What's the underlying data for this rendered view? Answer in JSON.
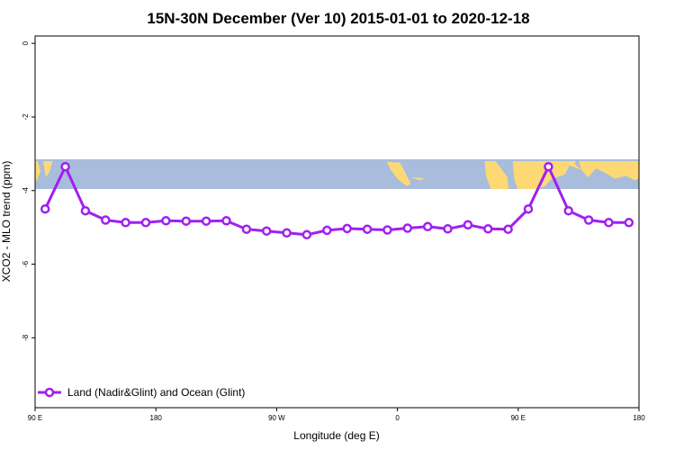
{
  "chart_data": {
    "type": "line",
    "title": "15N-30N December (Ver 10)   2015-01-01 to 2020-12-18",
    "xlabel": "Longitude (deg E)",
    "ylabel": "XCO2 - MLO trend (ppm)",
    "x_tick_labels": [
      "90 E",
      "180",
      "90 W",
      "0",
      "90 E",
      "180"
    ],
    "x_tick_values": [
      90,
      180,
      270,
      360,
      450,
      540
    ],
    "xlim": [
      90,
      540
    ],
    "y_tick_labels": [
      "0",
      "-2",
      "-4",
      "-6",
      "-8"
    ],
    "y_tick_values": [
      0,
      -2,
      -4,
      -6,
      -8
    ],
    "ylim": [
      -9.9,
      0.2
    ],
    "grid": false,
    "legend_position": "bottom-left",
    "map_band_y_range": [
      -4.0,
      -3.2
    ],
    "colors": {
      "series": "#a020f0",
      "ocean": "#a8bcdc",
      "land": "#fdd875"
    },
    "series": [
      {
        "name": "Land (Nadir&Glint) and Ocean (Glint)",
        "x": [
          97.5,
          112.5,
          127.5,
          142.5,
          157.5,
          172.5,
          187.5,
          202.5,
          217.5,
          232.5,
          247.5,
          262.5,
          277.5,
          292.5,
          307.5,
          322.5,
          337.5,
          352.5,
          367.5,
          382.5,
          397.5,
          412.5,
          427.5,
          442.5,
          457.5,
          472.5,
          487.5,
          502.5,
          517.5,
          532.5
        ],
        "values": [
          -4.5,
          -3.35,
          -4.55,
          -4.8,
          -4.87,
          -4.87,
          -4.82,
          -4.83,
          -4.83,
          -4.82,
          -5.05,
          -5.1,
          -5.15,
          -5.2,
          -5.08,
          -5.03,
          -5.05,
          -5.07,
          -5.02,
          -4.98,
          -5.04,
          -4.93,
          -5.04,
          -5.05,
          -4.5,
          -3.35,
          -4.55,
          -4.8,
          -4.87,
          -4.87
        ]
      }
    ]
  }
}
